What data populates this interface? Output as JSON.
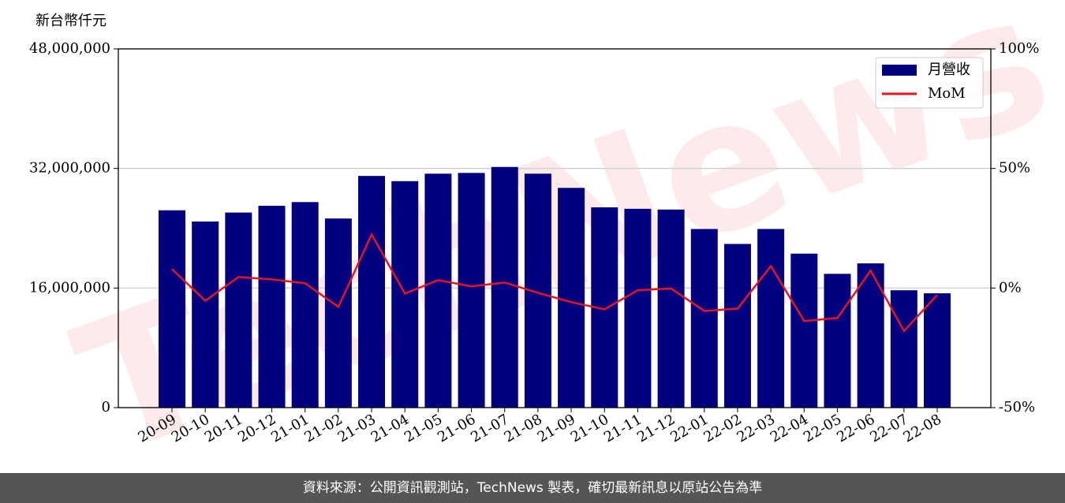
{
  "chart_data": {
    "type": "bar",
    "y_label": "新台幣仟元",
    "watermark": "TechNews",
    "footer": "資料來源：公開資訊觀測站，TechNews 製表，確切最新訊息以原站公告為準",
    "categories": [
      "20-09",
      "20-10",
      "20-11",
      "20-12",
      "21-01",
      "21-02",
      "21-03",
      "21-04",
      "21-05",
      "21-06",
      "21-07",
      "21-08",
      "21-09",
      "21-10",
      "21-11",
      "21-12",
      "22-01",
      "22-02",
      "22-03",
      "22-04",
      "22-05",
      "22-06",
      "22-07",
      "22-08"
    ],
    "series": [
      {
        "name": "月營收",
        "type": "bar",
        "color": "#000080",
        "values": [
          26400000,
          24900000,
          26100000,
          27000000,
          27500000,
          25300000,
          31000000,
          30300000,
          31300000,
          31400000,
          32200000,
          31300000,
          29400000,
          26800000,
          26600000,
          26500000,
          23900000,
          21900000,
          23900000,
          20600000,
          17900000,
          19300000,
          15700000,
          15300000
        ]
      },
      {
        "name": "MoM",
        "type": "line",
        "color": "#e8141c",
        "axis": "y2",
        "values": [
          7.9,
          -5.3,
          4.6,
          3.6,
          2.0,
          -7.9,
          22.4,
          -2.3,
          3.3,
          0.7,
          2.3,
          -2.0,
          -5.9,
          -8.9,
          -0.9,
          -0.2,
          -9.6,
          -8.6,
          9.2,
          -13.8,
          -12.5,
          7.3,
          -18.0,
          -2.9
        ]
      }
    ],
    "ylim": [
      0,
      48000000
    ],
    "yticks": [
      0,
      {
        "value": 16000000,
        "label": "16,000,000"
      },
      {
        "value": 32000000,
        "label": "32,000,000"
      },
      {
        "value": 48000000,
        "label": "48,000,000"
      }
    ],
    "y2lim": [
      -50,
      100
    ],
    "y2ticks": [
      {
        "value": -50,
        "label": "-50%"
      },
      {
        "value": 0,
        "label": "0%"
      },
      {
        "value": 50,
        "label": "50%"
      },
      {
        "value": 100,
        "label": "100%"
      }
    ],
    "grid": true,
    "legend": "upper right"
  }
}
